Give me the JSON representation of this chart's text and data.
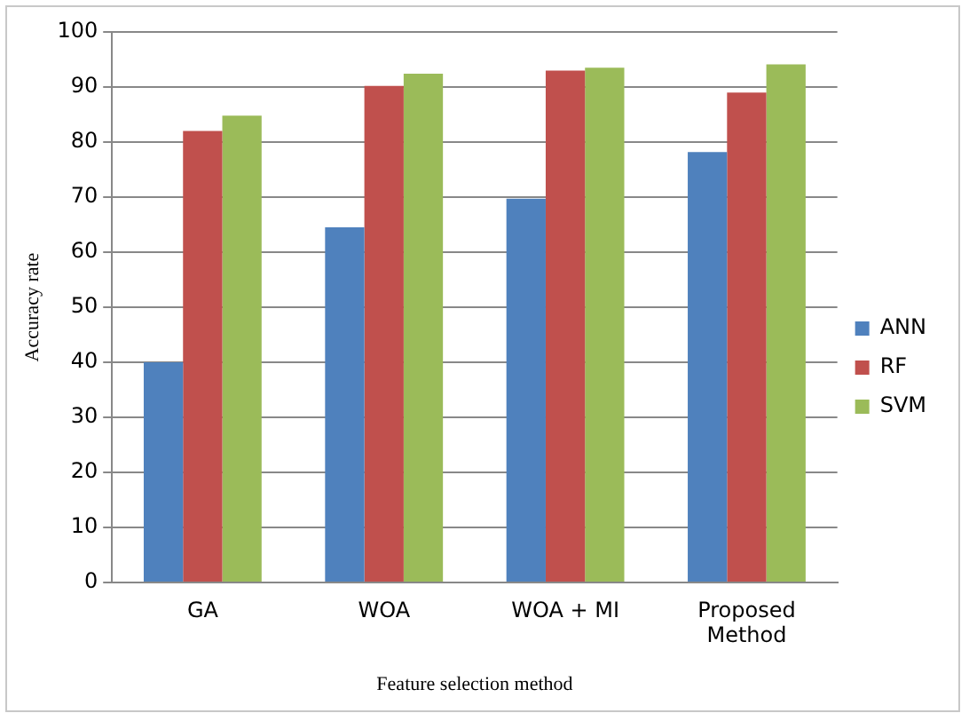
{
  "chart_data": {
    "type": "bar",
    "xlabel": "Feature selection method",
    "ylabel": "Accuracy rate",
    "categories": [
      "GA",
      "WOA",
      "WOA + MI",
      "Proposed Method"
    ],
    "series": [
      {
        "name": "ANN",
        "color": "#4f81bd",
        "values": [
          40,
          64.5,
          69.7,
          78.2
        ]
      },
      {
        "name": "RF",
        "color": "#c0504d",
        "values": [
          82,
          90.2,
          93,
          89
        ]
      },
      {
        "name": "SVM",
        "color": "#9bbb59",
        "values": [
          84.8,
          92.4,
          93.5,
          94.1
        ]
      }
    ],
    "ylim": [
      0,
      100
    ],
    "yticks": [
      0,
      10,
      20,
      30,
      40,
      50,
      60,
      70,
      80,
      90,
      100
    ],
    "grid": "y",
    "legend": "right"
  }
}
